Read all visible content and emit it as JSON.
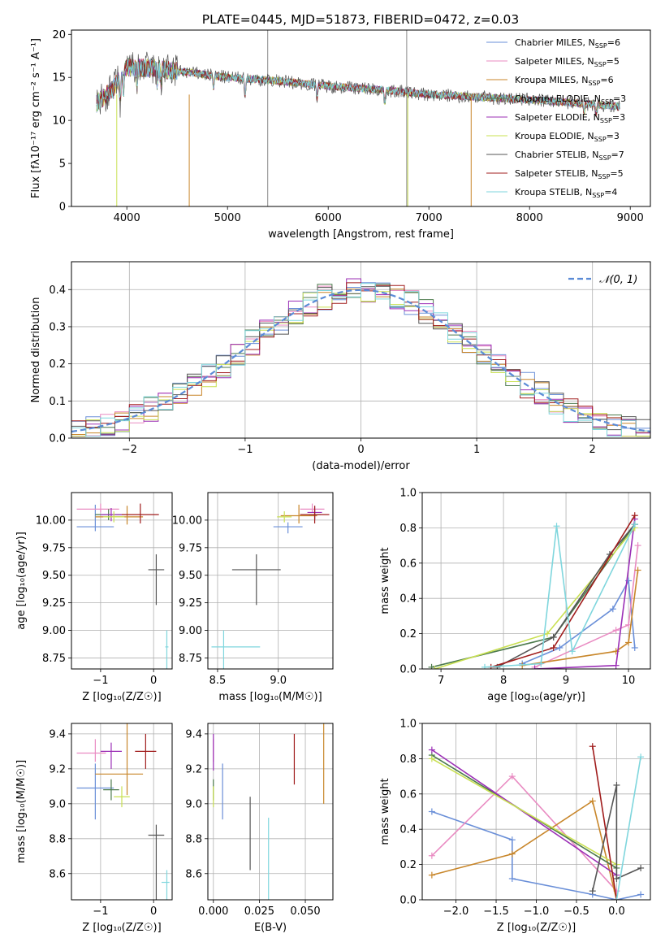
{
  "figure": {
    "title": "PLATE=0445, MJD=51873, FIBERID=0472, z=0.03"
  },
  "chart_data": [
    {
      "id": "spectrum",
      "type": "line",
      "xlabel": "wavelength [Angstrom, rest frame]",
      "ylabel": "Flux [fλ10⁻¹⁷ erg cm⁻² s⁻¹ A⁻¹]",
      "xlim": [
        3450,
        9200
      ],
      "ylim": [
        0,
        20.5
      ],
      "xticks": [
        4000,
        5000,
        6000,
        7000,
        8000,
        9000
      ],
      "yticks": [
        0,
        5,
        10,
        15,
        20
      ],
      "grid": false,
      "legend": "top-right",
      "note_continuum": [
        [
          3700,
          12.0
        ],
        [
          3850,
          13.5
        ],
        [
          4000,
          16.2
        ],
        [
          4300,
          16.0
        ],
        [
          4600,
          15.6
        ],
        [
          5000,
          15.0
        ],
        [
          5500,
          14.6
        ],
        [
          6000,
          14.0
        ],
        [
          6500,
          13.6
        ],
        [
          7000,
          13.0
        ],
        [
          7500,
          12.7
        ],
        [
          8000,
          12.4
        ],
        [
          8500,
          12.0
        ],
        [
          8900,
          11.6
        ]
      ],
      "series": [
        {
          "name": "Chabrier MILES, N",
          "sub": "SSP",
          "suffix": "=6",
          "color": "#6a8fd8"
        },
        {
          "name": "Salpeter MILES, N",
          "sub": "SSP",
          "suffix": "=5",
          "color": "#e98bc2"
        },
        {
          "name": "Kroupa MILES, N",
          "sub": "SSP",
          "suffix": "=6",
          "color": "#c8862a"
        },
        {
          "name": "Chabrier ELODIE, N",
          "sub": "SSP",
          "suffix": "=3",
          "color": "#4c7a4c"
        },
        {
          "name": "Salpeter ELODIE, N",
          "sub": "SSP",
          "suffix": "=3",
          "color": "#9b2fb6"
        },
        {
          "name": "Kroupa ELODIE, N",
          "sub": "SSP",
          "suffix": "=3",
          "color": "#c9e052"
        },
        {
          "name": "Chabrier STELIB, N",
          "sub": "SSP",
          "suffix": "=7",
          "color": "#555555"
        },
        {
          "name": "Salpeter STELIB, N",
          "sub": "SSP",
          "suffix": "=5",
          "color": "#a01c1c"
        },
        {
          "name": "Kroupa STELIB, N",
          "sub": "SSP",
          "suffix": "=4",
          "color": "#7fd6dd"
        }
      ]
    },
    {
      "id": "residuals",
      "type": "line",
      "xlabel": "(data-model)/error",
      "ylabel": "Normed distribution",
      "xlim": [
        -2.5,
        2.5
      ],
      "ylim": [
        0,
        0.475
      ],
      "xticks": [
        -2,
        -1,
        0,
        1,
        2
      ],
      "yticks": [
        0.0,
        0.1,
        0.2,
        0.3,
        0.4
      ],
      "grid": true,
      "legend": "top-right",
      "legend_label": "𝒩(0, 1)",
      "normal_color": "#5b8bd6",
      "bins": 40
    },
    {
      "id": "age_vs_Z",
      "type": "scatter",
      "xlabel": "Z [log₁₀(Z/Z☉)]",
      "ylabel": "age  [log₁₀(age/yr)]",
      "xlim": [
        -1.55,
        0.35
      ],
      "ylim": [
        8.65,
        10.25
      ],
      "xticks": [
        -1,
        0
      ],
      "yticks": [
        8.75,
        9.0,
        9.25,
        9.5,
        9.75,
        10.0
      ],
      "grid": true,
      "points": [
        {
          "color": "#6a8fd8",
          "x": -1.1,
          "y": 9.94,
          "xerr": [
            0.35,
            0.35
          ],
          "yerr": [
            0.2,
            0.04
          ]
        },
        {
          "color": "#e98bc2",
          "x": -1.0,
          "y": 10.1,
          "xerr": [
            0.45,
            0.35
          ],
          "yerr": [
            0.05,
            0.03
          ]
        },
        {
          "color": "#c8862a",
          "x": -0.5,
          "y": 10.03,
          "xerr": [
            0.6,
            0.3
          ],
          "yerr": [
            0.1,
            0.07
          ]
        },
        {
          "color": "#4c7a4c",
          "x": -0.85,
          "y": 10.05,
          "xerr": [
            0.25,
            0.25
          ],
          "yerr": [
            0.05,
            0.05
          ]
        },
        {
          "color": "#9b2fb6",
          "x": -0.8,
          "y": 10.05,
          "xerr": [
            0.2,
            0.2
          ],
          "yerr": [
            0.06,
            0.06
          ]
        },
        {
          "color": "#c9e052",
          "x": -0.75,
          "y": 10.03,
          "xerr": [
            0.2,
            0.2
          ],
          "yerr": [
            0.05,
            0.05
          ]
        },
        {
          "color": "#555555",
          "x": 0.05,
          "y": 9.55,
          "xerr": [
            0.15,
            0.15
          ],
          "yerr": [
            0.14,
            0.32
          ]
        },
        {
          "color": "#a01c1c",
          "x": -0.25,
          "y": 10.05,
          "xerr": [
            0.35,
            0.35
          ],
          "yerr": [
            0.1,
            0.08
          ]
        },
        {
          "color": "#7fd6dd",
          "x": 0.25,
          "y": 8.85,
          "xerr": [
            0.03,
            0.03
          ],
          "yerr": [
            0.15,
            1.12
          ]
        }
      ]
    },
    {
      "id": "age_vs_mass",
      "type": "scatter",
      "xlabel": "mass [log₁₀(M/M☉)]",
      "ylabel": "",
      "xlim": [
        8.42,
        9.45
      ],
      "ylim": [
        8.65,
        10.25
      ],
      "xticks": [
        8.5,
        9.0
      ],
      "yticks": [
        8.75,
        9.0,
        9.25,
        9.5,
        9.75,
        10.0
      ],
      "grid": true,
      "points": [
        {
          "color": "#6a8fd8",
          "x": 9.08,
          "y": 9.94,
          "xerr": [
            0.12,
            0.12
          ],
          "yerr": [
            0.04,
            0.06
          ]
        },
        {
          "color": "#e98bc2",
          "x": 9.28,
          "y": 10.1,
          "xerr": [
            0.1,
            0.1
          ],
          "yerr": [
            0.05,
            0.03
          ]
        },
        {
          "color": "#c8862a",
          "x": 9.17,
          "y": 10.04,
          "xerr": [
            0.15,
            0.15
          ],
          "yerr": [
            0.1,
            0.07
          ]
        },
        {
          "color": "#4c7a4c",
          "x": 9.3,
          "y": 10.05,
          "xerr": [
            0.05,
            0.05
          ],
          "yerr": [
            0.05,
            0.05
          ]
        },
        {
          "color": "#9b2fb6",
          "x": 9.3,
          "y": 10.07,
          "xerr": [
            0.06,
            0.06
          ],
          "yerr": [
            0.06,
            0.06
          ]
        },
        {
          "color": "#c9e052",
          "x": 9.05,
          "y": 10.03,
          "xerr": [
            0.06,
            0.06
          ],
          "yerr": [
            0.05,
            0.05
          ]
        },
        {
          "color": "#555555",
          "x": 8.82,
          "y": 9.55,
          "xerr": [
            0.2,
            0.2
          ],
          "yerr": [
            0.14,
            0.32
          ]
        },
        {
          "color": "#a01c1c",
          "x": 9.3,
          "y": 10.05,
          "xerr": [
            0.12,
            0.12
          ],
          "yerr": [
            0.08,
            0.08
          ]
        },
        {
          "color": "#7fd6dd",
          "x": 8.55,
          "y": 8.85,
          "xerr": [
            0.1,
            0.3
          ],
          "yerr": [
            0.15,
            1.12
          ]
        }
      ]
    },
    {
      "id": "weight_vs_age",
      "type": "line",
      "xlabel": "age  [log₁₀(age/yr)]",
      "ylabel": "mass weight",
      "xlim": [
        6.7,
        10.35
      ],
      "ylim": [
        0,
        1.0
      ],
      "xticks": [
        7,
        8,
        9,
        10
      ],
      "yticks": [
        0.0,
        0.2,
        0.4,
        0.6,
        0.8,
        1.0
      ],
      "grid": true,
      "series": [
        {
          "color": "#6a8fd8",
          "x": [
            8.3,
            8.9,
            9.75,
            10.0,
            10.1
          ],
          "y": [
            0.03,
            0.12,
            0.34,
            0.5,
            0.12
          ]
        },
        {
          "color": "#e98bc2",
          "x": [
            8.5,
            9.8,
            10.0,
            10.15
          ],
          "y": [
            0.01,
            0.22,
            0.25,
            0.7
          ]
        },
        {
          "color": "#c8862a",
          "x": [
            8.3,
            9.8,
            10.0,
            10.15
          ],
          "y": [
            0.02,
            0.1,
            0.15,
            0.56
          ]
        },
        {
          "color": "#4c7a4c",
          "x": [
            6.85,
            8.8,
            10.1
          ],
          "y": [
            0.01,
            0.18,
            0.82
          ]
        },
        {
          "color": "#9b2fb6",
          "x": [
            8.5,
            9.8,
            10.1
          ],
          "y": [
            0.0,
            0.02,
            0.85
          ]
        },
        {
          "color": "#c9e052",
          "x": [
            6.9,
            8.7,
            10.1
          ],
          "y": [
            0.0,
            0.2,
            0.8
          ]
        },
        {
          "color": "#555555",
          "x": [
            7.9,
            8.8,
            9.7,
            10.1
          ],
          "y": [
            0.01,
            0.18,
            0.65,
            0.82
          ]
        },
        {
          "color": "#a01c1c",
          "x": [
            7.8,
            8.8,
            10.1
          ],
          "y": [
            0.01,
            0.12,
            0.87
          ]
        },
        {
          "color": "#7fd6dd",
          "x": [
            7.7,
            8.6,
            8.85,
            9.1,
            10.1
          ],
          "y": [
            0.01,
            0.03,
            0.81,
            0.1,
            0.82
          ]
        }
      ]
    },
    {
      "id": "mass_vs_Z",
      "type": "scatter",
      "xlabel": "Z [log₁₀(Z/Z☉)]",
      "ylabel": "mass [log₁₀(M/M☉)]",
      "xlim": [
        -1.55,
        0.35
      ],
      "ylim": [
        8.45,
        9.46
      ],
      "xticks": [
        -1,
        0
      ],
      "yticks": [
        8.6,
        8.8,
        9.0,
        9.2,
        9.4
      ],
      "grid": true,
      "points": [
        {
          "color": "#6a8fd8",
          "x": -1.1,
          "y": 9.09,
          "xerr": [
            0.35,
            0.35
          ],
          "yerr": [
            0.14,
            0.18
          ]
        },
        {
          "color": "#e98bc2",
          "x": -1.1,
          "y": 9.29,
          "xerr": [
            0.35,
            0.2
          ],
          "yerr": [
            0.08,
            0.05
          ]
        },
        {
          "color": "#c8862a",
          "x": -0.5,
          "y": 9.17,
          "xerr": [
            0.6,
            0.3
          ],
          "yerr": [
            0.3,
            0.12
          ]
        },
        {
          "color": "#4c7a4c",
          "x": -0.8,
          "y": 9.08,
          "xerr": [
            0.15,
            0.15
          ],
          "yerr": [
            0.06,
            0.06
          ]
        },
        {
          "color": "#9b2fb6",
          "x": -0.8,
          "y": 9.3,
          "xerr": [
            0.2,
            0.2
          ],
          "yerr": [
            0.05,
            0.1
          ]
        },
        {
          "color": "#c9e052",
          "x": -0.6,
          "y": 9.04,
          "xerr": [
            0.15,
            0.15
          ],
          "yerr": [
            0.06,
            0.06
          ]
        },
        {
          "color": "#555555",
          "x": 0.05,
          "y": 8.82,
          "xerr": [
            0.15,
            0.15
          ],
          "yerr": [
            0.06,
            0.37
          ]
        },
        {
          "color": "#a01c1c",
          "x": -0.15,
          "y": 9.3,
          "xerr": [
            0.2,
            0.2
          ],
          "yerr": [
            0.1,
            0.1
          ]
        },
        {
          "color": "#7fd6dd",
          "x": 0.25,
          "y": 8.55,
          "xerr": [
            0.1,
            0.05
          ],
          "yerr": [
            0.07,
            0.43
          ]
        }
      ]
    },
    {
      "id": "mass_vs_ebv",
      "type": "scatter",
      "xlabel": "E(B-V)",
      "ylabel": "",
      "xlim": [
        -0.003,
        0.065
      ],
      "ylim": [
        8.45,
        9.46
      ],
      "xticks": [
        0.0,
        0.025,
        0.05
      ],
      "yticks": [
        8.6,
        8.8,
        9.0,
        9.2,
        9.4
      ],
      "grid": true,
      "points": [
        {
          "color": "#6a8fd8",
          "x": 0.005,
          "y": 9.09,
          "xerr": [
            0,
            0
          ],
          "yerr": [
            0.14,
            0.18
          ]
        },
        {
          "color": "#e98bc2",
          "x": 0.0,
          "y": 9.29,
          "xerr": [
            0,
            0
          ],
          "yerr": [
            0.08,
            0.05
          ]
        },
        {
          "color": "#c8862a",
          "x": 0.06,
          "y": 9.17,
          "xerr": [
            0,
            0
          ],
          "yerr": [
            0.3,
            0.17
          ]
        },
        {
          "color": "#4c7a4c",
          "x": 0.0,
          "y": 9.08,
          "xerr": [
            0,
            0
          ],
          "yerr": [
            0.06,
            0.06
          ]
        },
        {
          "color": "#9b2fb6",
          "x": 0.0,
          "y": 9.3,
          "xerr": [
            0,
            0
          ],
          "yerr": [
            0.1,
            0.11
          ]
        },
        {
          "color": "#c9e052",
          "x": 0.0,
          "y": 9.04,
          "xerr": [
            0,
            0
          ],
          "yerr": [
            0.06,
            0.06
          ]
        },
        {
          "color": "#555555",
          "x": 0.02,
          "y": 8.9,
          "xerr": [
            0,
            0
          ],
          "yerr": [
            0.14,
            0.28
          ]
        },
        {
          "color": "#a01c1c",
          "x": 0.044,
          "y": 9.25,
          "xerr": [
            0,
            0
          ],
          "yerr": [
            0.15,
            0.14
          ]
        },
        {
          "color": "#7fd6dd",
          "x": 0.03,
          "y": 8.7,
          "xerr": [
            0,
            0
          ],
          "yerr": [
            0.22,
            0.27
          ]
        }
      ]
    },
    {
      "id": "weight_vs_Z",
      "type": "line",
      "xlabel": "Z [log₁₀(Z/Z☉)]",
      "ylabel": "mass weight",
      "xlim": [
        -2.42,
        0.42
      ],
      "ylim": [
        0,
        1.0
      ],
      "xticks": [
        -2.0,
        -1.5,
        -1.0,
        -0.5,
        0.0
      ],
      "yticks": [
        0.0,
        0.2,
        0.4,
        0.6,
        0.8,
        1.0
      ],
      "grid": true,
      "series": [
        {
          "color": "#6a8fd8",
          "x": [
            -2.3,
            -1.3,
            -1.3,
            -0.3,
            0.0,
            0.3
          ],
          "y": [
            0.5,
            0.34,
            0.12,
            0.03,
            0.0,
            0.03
          ]
        },
        {
          "color": "#e98bc2",
          "x": [
            -2.3,
            -1.3,
            0.0
          ],
          "y": [
            0.25,
            0.7,
            0.05
          ]
        },
        {
          "color": "#c8862a",
          "x": [
            -2.3,
            -1.3,
            -0.3,
            0.0
          ],
          "y": [
            0.14,
            0.26,
            0.56,
            0.0
          ]
        },
        {
          "color": "#4c7a4c",
          "x": [
            -2.3,
            0.0
          ],
          "y": [
            0.82,
            0.18
          ]
        },
        {
          "color": "#9b2fb6",
          "x": [
            -2.3,
            0.0
          ],
          "y": [
            0.85,
            0.14
          ]
        },
        {
          "color": "#c9e052",
          "x": [
            -2.3,
            0.0
          ],
          "y": [
            0.8,
            0.2
          ]
        },
        {
          "color": "#555555",
          "x": [
            -0.3,
            0.0,
            0.0,
            0.3
          ],
          "y": [
            0.05,
            0.65,
            0.12,
            0.18
          ]
        },
        {
          "color": "#a01c1c",
          "x": [
            -0.3,
            0.0
          ],
          "y": [
            0.87,
            0.0
          ]
        },
        {
          "color": "#7fd6dd",
          "x": [
            0.0,
            0.3
          ],
          "y": [
            0.0,
            0.81
          ]
        }
      ]
    }
  ]
}
